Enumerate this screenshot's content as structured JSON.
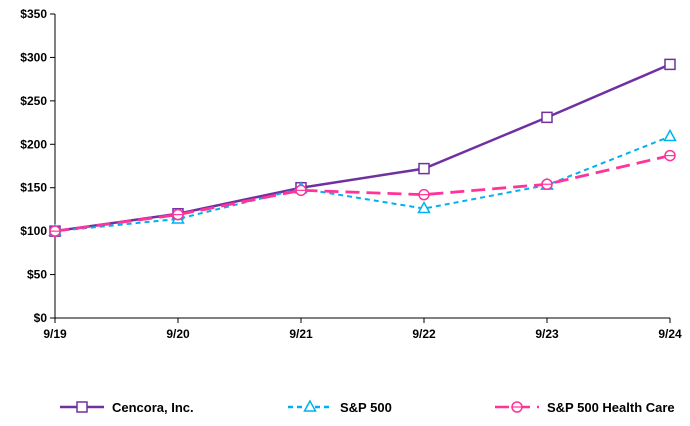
{
  "chart_data": {
    "type": "line",
    "categories": [
      "9/19",
      "9/20",
      "9/21",
      "9/22",
      "9/23",
      "9/24"
    ],
    "y_ticks": [
      "$0",
      "$50",
      "$100",
      "$150",
      "$200",
      "$250",
      "$300",
      "$350"
    ],
    "ylim": [
      0,
      350
    ],
    "grid": false,
    "legend_position": "bottom",
    "series": [
      {
        "name": "Cencora, Inc.",
        "values": [
          100,
          120,
          150,
          172,
          231,
          292
        ],
        "color": "#7030A0",
        "marker": "square",
        "dash": "solid"
      },
      {
        "name": "S&P 500",
        "values": [
          100,
          114,
          149,
          126,
          153,
          209
        ],
        "color": "#00B0F0",
        "marker": "triangle",
        "dash": "short-dash"
      },
      {
        "name": "S&P 500 Health Care",
        "values": [
          100,
          119,
          147,
          142,
          154,
          187
        ],
        "color": "#FF3399",
        "marker": "circle",
        "dash": "long-dash"
      }
    ]
  }
}
